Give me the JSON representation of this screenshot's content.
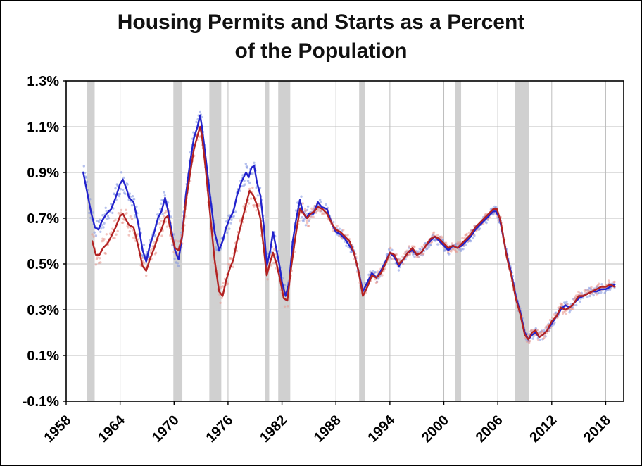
{
  "chart_data": {
    "type": "line",
    "title": "Housing Permits and Starts as a Percent of the Population",
    "title_lines": [
      "Housing Permits and Starts as a Percent",
      "of the Population"
    ],
    "xlabel": "",
    "ylabel": "",
    "x_range": [
      1958,
      2020
    ],
    "y_range": [
      -0.1,
      1.3
    ],
    "x_ticks": [
      1958,
      1964,
      1970,
      1976,
      1982,
      1988,
      1994,
      2000,
      2006,
      2012,
      2018
    ],
    "y_ticks": [
      -0.1,
      0.1,
      0.3,
      0.5,
      0.7,
      0.9,
      1.1,
      1.3
    ],
    "y_tick_labels": [
      "-0.1%",
      "0.1%",
      "0.3%",
      "0.5%",
      "0.7%",
      "0.9%",
      "1.1%",
      "1.3%"
    ],
    "grid": true,
    "legend": "none",
    "colors": {
      "grid": "#bdbdbd",
      "recession": "#d0d0d0",
      "axis": "#000000",
      "permits_line": "#2222cc",
      "permits_scatter": "#7b8fe0",
      "starts_line": "#b22222",
      "starts_scatter": "#e8968c"
    },
    "recessions": [
      [
        1960.33,
        1961.17
      ],
      [
        1969.92,
        1970.92
      ],
      [
        1973.92,
        1975.25
      ],
      [
        1980.08,
        1980.58
      ],
      [
        1981.58,
        1982.92
      ],
      [
        1990.58,
        1991.25
      ],
      [
        2001.25,
        2001.92
      ],
      [
        2007.92,
        2009.5
      ]
    ],
    "series": [
      {
        "name": "Permits",
        "color_key": "permits_line",
        "scatter_key": "permits_scatter",
        "points": [
          [
            1959.9,
            0.9
          ],
          [
            1960.3,
            0.82
          ],
          [
            1960.8,
            0.72
          ],
          [
            1961.2,
            0.66
          ],
          [
            1961.6,
            0.65
          ],
          [
            1962.0,
            0.69
          ],
          [
            1962.5,
            0.72
          ],
          [
            1963.0,
            0.74
          ],
          [
            1963.5,
            0.79
          ],
          [
            1964.0,
            0.85
          ],
          [
            1964.3,
            0.87
          ],
          [
            1964.7,
            0.83
          ],
          [
            1965.0,
            0.79
          ],
          [
            1965.5,
            0.77
          ],
          [
            1966.0,
            0.68
          ],
          [
            1966.5,
            0.56
          ],
          [
            1966.9,
            0.51
          ],
          [
            1967.3,
            0.58
          ],
          [
            1967.8,
            0.64
          ],
          [
            1968.2,
            0.7
          ],
          [
            1968.6,
            0.73
          ],
          [
            1969.0,
            0.79
          ],
          [
            1969.3,
            0.74
          ],
          [
            1969.7,
            0.65
          ],
          [
            1970.1,
            0.56
          ],
          [
            1970.5,
            0.52
          ],
          [
            1970.9,
            0.62
          ],
          [
            1971.3,
            0.8
          ],
          [
            1971.8,
            0.95
          ],
          [
            1972.2,
            1.05
          ],
          [
            1972.6,
            1.1
          ],
          [
            1972.9,
            1.15
          ],
          [
            1973.1,
            1.1
          ],
          [
            1973.5,
            0.97
          ],
          [
            1974.0,
            0.8
          ],
          [
            1974.5,
            0.64
          ],
          [
            1975.0,
            0.56
          ],
          [
            1975.4,
            0.6
          ],
          [
            1975.8,
            0.66
          ],
          [
            1976.2,
            0.7
          ],
          [
            1976.6,
            0.73
          ],
          [
            1977.0,
            0.8
          ],
          [
            1977.5,
            0.86
          ],
          [
            1978.0,
            0.9
          ],
          [
            1978.3,
            0.88
          ],
          [
            1978.6,
            0.92
          ],
          [
            1978.9,
            0.93
          ],
          [
            1979.2,
            0.86
          ],
          [
            1979.6,
            0.8
          ],
          [
            1980.0,
            0.66
          ],
          [
            1980.3,
            0.49
          ],
          [
            1980.7,
            0.56
          ],
          [
            1981.0,
            0.64
          ],
          [
            1981.3,
            0.58
          ],
          [
            1981.7,
            0.5
          ],
          [
            1982.0,
            0.42
          ],
          [
            1982.4,
            0.36
          ],
          [
            1982.8,
            0.42
          ],
          [
            1983.2,
            0.6
          ],
          [
            1983.6,
            0.7
          ],
          [
            1984.0,
            0.78
          ],
          [
            1984.3,
            0.73
          ],
          [
            1984.7,
            0.7
          ],
          [
            1985.0,
            0.72
          ],
          [
            1985.5,
            0.72
          ],
          [
            1986.0,
            0.77
          ],
          [
            1986.4,
            0.75
          ],
          [
            1987.0,
            0.74
          ],
          [
            1987.5,
            0.68
          ],
          [
            1988.0,
            0.64
          ],
          [
            1988.5,
            0.63
          ],
          [
            1989.0,
            0.61
          ],
          [
            1989.5,
            0.58
          ],
          [
            1990.0,
            0.55
          ],
          [
            1990.5,
            0.47
          ],
          [
            1991.0,
            0.38
          ],
          [
            1991.5,
            0.42
          ],
          [
            1992.0,
            0.46
          ],
          [
            1992.5,
            0.44
          ],
          [
            1993.0,
            0.47
          ],
          [
            1993.5,
            0.51
          ],
          [
            1994.0,
            0.55
          ],
          [
            1994.5,
            0.53
          ],
          [
            1995.0,
            0.49
          ],
          [
            1995.5,
            0.52
          ],
          [
            1996.0,
            0.55
          ],
          [
            1996.5,
            0.56
          ],
          [
            1997.0,
            0.54
          ],
          [
            1997.5,
            0.55
          ],
          [
            1998.0,
            0.58
          ],
          [
            1998.5,
            0.6
          ],
          [
            1999.0,
            0.62
          ],
          [
            1999.5,
            0.6
          ],
          [
            2000.0,
            0.58
          ],
          [
            2000.5,
            0.56
          ],
          [
            2001.0,
            0.58
          ],
          [
            2001.5,
            0.57
          ],
          [
            2002.0,
            0.58
          ],
          [
            2002.5,
            0.6
          ],
          [
            2003.0,
            0.62
          ],
          [
            2003.5,
            0.65
          ],
          [
            2004.0,
            0.67
          ],
          [
            2004.5,
            0.69
          ],
          [
            2005.0,
            0.71
          ],
          [
            2005.5,
            0.73
          ],
          [
            2005.8,
            0.73
          ],
          [
            2006.2,
            0.7
          ],
          [
            2006.6,
            0.62
          ],
          [
            2007.0,
            0.54
          ],
          [
            2007.5,
            0.46
          ],
          [
            2008.0,
            0.36
          ],
          [
            2008.5,
            0.29
          ],
          [
            2009.0,
            0.2
          ],
          [
            2009.4,
            0.17
          ],
          [
            2009.8,
            0.19
          ],
          [
            2010.2,
            0.2
          ],
          [
            2010.6,
            0.18
          ],
          [
            2011.0,
            0.19
          ],
          [
            2011.5,
            0.21
          ],
          [
            2012.0,
            0.24
          ],
          [
            2012.5,
            0.27
          ],
          [
            2013.0,
            0.3
          ],
          [
            2013.5,
            0.32
          ],
          [
            2014.0,
            0.31
          ],
          [
            2014.5,
            0.33
          ],
          [
            2015.0,
            0.35
          ],
          [
            2015.5,
            0.36
          ],
          [
            2016.0,
            0.37
          ],
          [
            2016.5,
            0.38
          ],
          [
            2017.0,
            0.38
          ],
          [
            2017.5,
            0.39
          ],
          [
            2018.0,
            0.39
          ],
          [
            2018.5,
            0.4
          ],
          [
            2019.0,
            0.41
          ]
        ]
      },
      {
        "name": "Starts",
        "color_key": "starts_line",
        "scatter_key": "starts_scatter",
        "points": [
          [
            1960.9,
            0.6
          ],
          [
            1961.3,
            0.54
          ],
          [
            1961.7,
            0.54
          ],
          [
            1962.1,
            0.57
          ],
          [
            1962.6,
            0.59
          ],
          [
            1963.0,
            0.62
          ],
          [
            1963.5,
            0.66
          ],
          [
            1964.0,
            0.71
          ],
          [
            1964.3,
            0.72
          ],
          [
            1964.7,
            0.69
          ],
          [
            1965.0,
            0.67
          ],
          [
            1965.5,
            0.66
          ],
          [
            1966.0,
            0.58
          ],
          [
            1966.5,
            0.49
          ],
          [
            1966.9,
            0.47
          ],
          [
            1967.3,
            0.52
          ],
          [
            1967.8,
            0.57
          ],
          [
            1968.2,
            0.62
          ],
          [
            1968.6,
            0.65
          ],
          [
            1969.0,
            0.7
          ],
          [
            1969.3,
            0.71
          ],
          [
            1969.7,
            0.63
          ],
          [
            1970.1,
            0.57
          ],
          [
            1970.5,
            0.56
          ],
          [
            1970.9,
            0.62
          ],
          [
            1971.3,
            0.77
          ],
          [
            1971.8,
            0.9
          ],
          [
            1972.2,
            1.0
          ],
          [
            1972.6,
            1.06
          ],
          [
            1972.9,
            1.1
          ],
          [
            1973.1,
            1.06
          ],
          [
            1973.5,
            0.92
          ],
          [
            1974.0,
            0.72
          ],
          [
            1974.5,
            0.52
          ],
          [
            1975.0,
            0.38
          ],
          [
            1975.4,
            0.36
          ],
          [
            1975.8,
            0.43
          ],
          [
            1976.2,
            0.48
          ],
          [
            1976.6,
            0.52
          ],
          [
            1977.0,
            0.6
          ],
          [
            1977.5,
            0.68
          ],
          [
            1978.0,
            0.76
          ],
          [
            1978.4,
            0.82
          ],
          [
            1978.8,
            0.8
          ],
          [
            1979.2,
            0.76
          ],
          [
            1979.6,
            0.7
          ],
          [
            1980.0,
            0.56
          ],
          [
            1980.3,
            0.45
          ],
          [
            1980.7,
            0.51
          ],
          [
            1981.0,
            0.55
          ],
          [
            1981.4,
            0.5
          ],
          [
            1981.8,
            0.43
          ],
          [
            1982.2,
            0.35
          ],
          [
            1982.6,
            0.34
          ],
          [
            1983.0,
            0.48
          ],
          [
            1983.5,
            0.62
          ],
          [
            1984.0,
            0.74
          ],
          [
            1984.4,
            0.72
          ],
          [
            1984.8,
            0.7
          ],
          [
            1985.2,
            0.72
          ],
          [
            1985.6,
            0.73
          ],
          [
            1986.0,
            0.75
          ],
          [
            1986.5,
            0.74
          ],
          [
            1987.0,
            0.72
          ],
          [
            1987.5,
            0.68
          ],
          [
            1988.0,
            0.65
          ],
          [
            1988.5,
            0.64
          ],
          [
            1989.0,
            0.62
          ],
          [
            1989.5,
            0.6
          ],
          [
            1990.0,
            0.55
          ],
          [
            1990.5,
            0.47
          ],
          [
            1991.0,
            0.36
          ],
          [
            1991.5,
            0.4
          ],
          [
            1992.0,
            0.45
          ],
          [
            1992.5,
            0.44
          ],
          [
            1993.0,
            0.46
          ],
          [
            1993.5,
            0.5
          ],
          [
            1994.0,
            0.55
          ],
          [
            1994.5,
            0.54
          ],
          [
            1995.0,
            0.5
          ],
          [
            1995.5,
            0.52
          ],
          [
            1996.0,
            0.55
          ],
          [
            1996.5,
            0.57
          ],
          [
            1997.0,
            0.54
          ],
          [
            1997.5,
            0.55
          ],
          [
            1998.0,
            0.58
          ],
          [
            1998.5,
            0.61
          ],
          [
            1999.0,
            0.62
          ],
          [
            1999.5,
            0.61
          ],
          [
            2000.0,
            0.59
          ],
          [
            2000.5,
            0.57
          ],
          [
            2001.0,
            0.58
          ],
          [
            2001.5,
            0.57
          ],
          [
            2002.0,
            0.59
          ],
          [
            2002.5,
            0.61
          ],
          [
            2003.0,
            0.63
          ],
          [
            2003.5,
            0.66
          ],
          [
            2004.0,
            0.68
          ],
          [
            2004.5,
            0.7
          ],
          [
            2005.0,
            0.72
          ],
          [
            2005.5,
            0.74
          ],
          [
            2005.9,
            0.74
          ],
          [
            2006.3,
            0.69
          ],
          [
            2006.7,
            0.6
          ],
          [
            2007.0,
            0.53
          ],
          [
            2007.5,
            0.45
          ],
          [
            2008.0,
            0.35
          ],
          [
            2008.5,
            0.28
          ],
          [
            2009.0,
            0.19
          ],
          [
            2009.4,
            0.17
          ],
          [
            2009.8,
            0.2
          ],
          [
            2010.2,
            0.21
          ],
          [
            2010.6,
            0.18
          ],
          [
            2011.0,
            0.19
          ],
          [
            2011.5,
            0.21
          ],
          [
            2012.0,
            0.25
          ],
          [
            2012.5,
            0.27
          ],
          [
            2013.0,
            0.31
          ],
          [
            2013.5,
            0.3
          ],
          [
            2014.0,
            0.31
          ],
          [
            2014.5,
            0.33
          ],
          [
            2015.0,
            0.36
          ],
          [
            2015.5,
            0.36
          ],
          [
            2016.0,
            0.37
          ],
          [
            2016.5,
            0.38
          ],
          [
            2017.0,
            0.39
          ],
          [
            2017.5,
            0.4
          ],
          [
            2018.0,
            0.4
          ],
          [
            2018.5,
            0.41
          ],
          [
            2019.0,
            0.4
          ]
        ]
      }
    ]
  }
}
